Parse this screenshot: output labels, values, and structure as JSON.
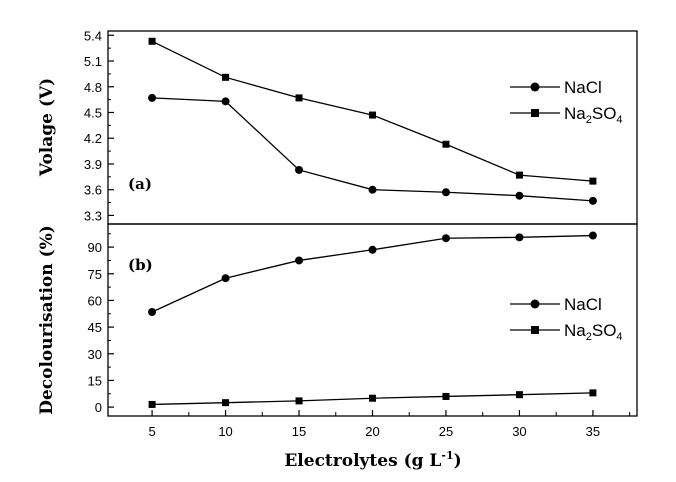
{
  "chart_data": [
    {
      "type": "line",
      "panel_label": "(a)",
      "ylabel": "Volage (V)",
      "ylim": [
        3.2,
        5.45
      ],
      "yticks": [
        "3.3",
        "3.6",
        "3.9",
        "4.2",
        "4.5",
        "4.8",
        "5.1",
        "5.4"
      ],
      "x": [
        5,
        10,
        15,
        20,
        25,
        30,
        35
      ],
      "series": [
        {
          "name": "NaCl",
          "marker": "circle",
          "values": [
            4.67,
            4.63,
            3.83,
            3.6,
            3.57,
            3.53,
            3.47
          ]
        },
        {
          "name": "Na2SO4",
          "name_parts": [
            "Na",
            "2",
            "SO",
            "4"
          ],
          "marker": "square",
          "values": [
            5.33,
            4.91,
            4.67,
            4.47,
            4.13,
            3.77,
            3.7
          ]
        }
      ]
    },
    {
      "type": "line",
      "panel_label": "(b)",
      "ylabel": "Decolourisation (%)",
      "ylim": [
        -5,
        103
      ],
      "yticks": [
        "0",
        "15",
        "30",
        "45",
        "60",
        "75",
        "90"
      ],
      "x": [
        5,
        10,
        15,
        20,
        25,
        30,
        35
      ],
      "series": [
        {
          "name": "NaCl",
          "marker": "circle",
          "values": [
            53.5,
            72.5,
            82.5,
            88.5,
            95.0,
            95.5,
            96.5
          ]
        },
        {
          "name": "Na2SO4",
          "name_parts": [
            "Na",
            "2",
            "SO",
            "4"
          ],
          "marker": "square",
          "values": [
            1.5,
            2.5,
            3.5,
            5.0,
            6.0,
            7.0,
            8.0
          ]
        }
      ]
    }
  ],
  "shared_x": {
    "label_main": "Electrolytes (g L",
    "label_sup": "-1",
    "label_close": ")",
    "xlim": [
      2,
      38
    ],
    "xticks": [
      "5",
      "10",
      "15",
      "20",
      "25",
      "30",
      "35"
    ]
  }
}
